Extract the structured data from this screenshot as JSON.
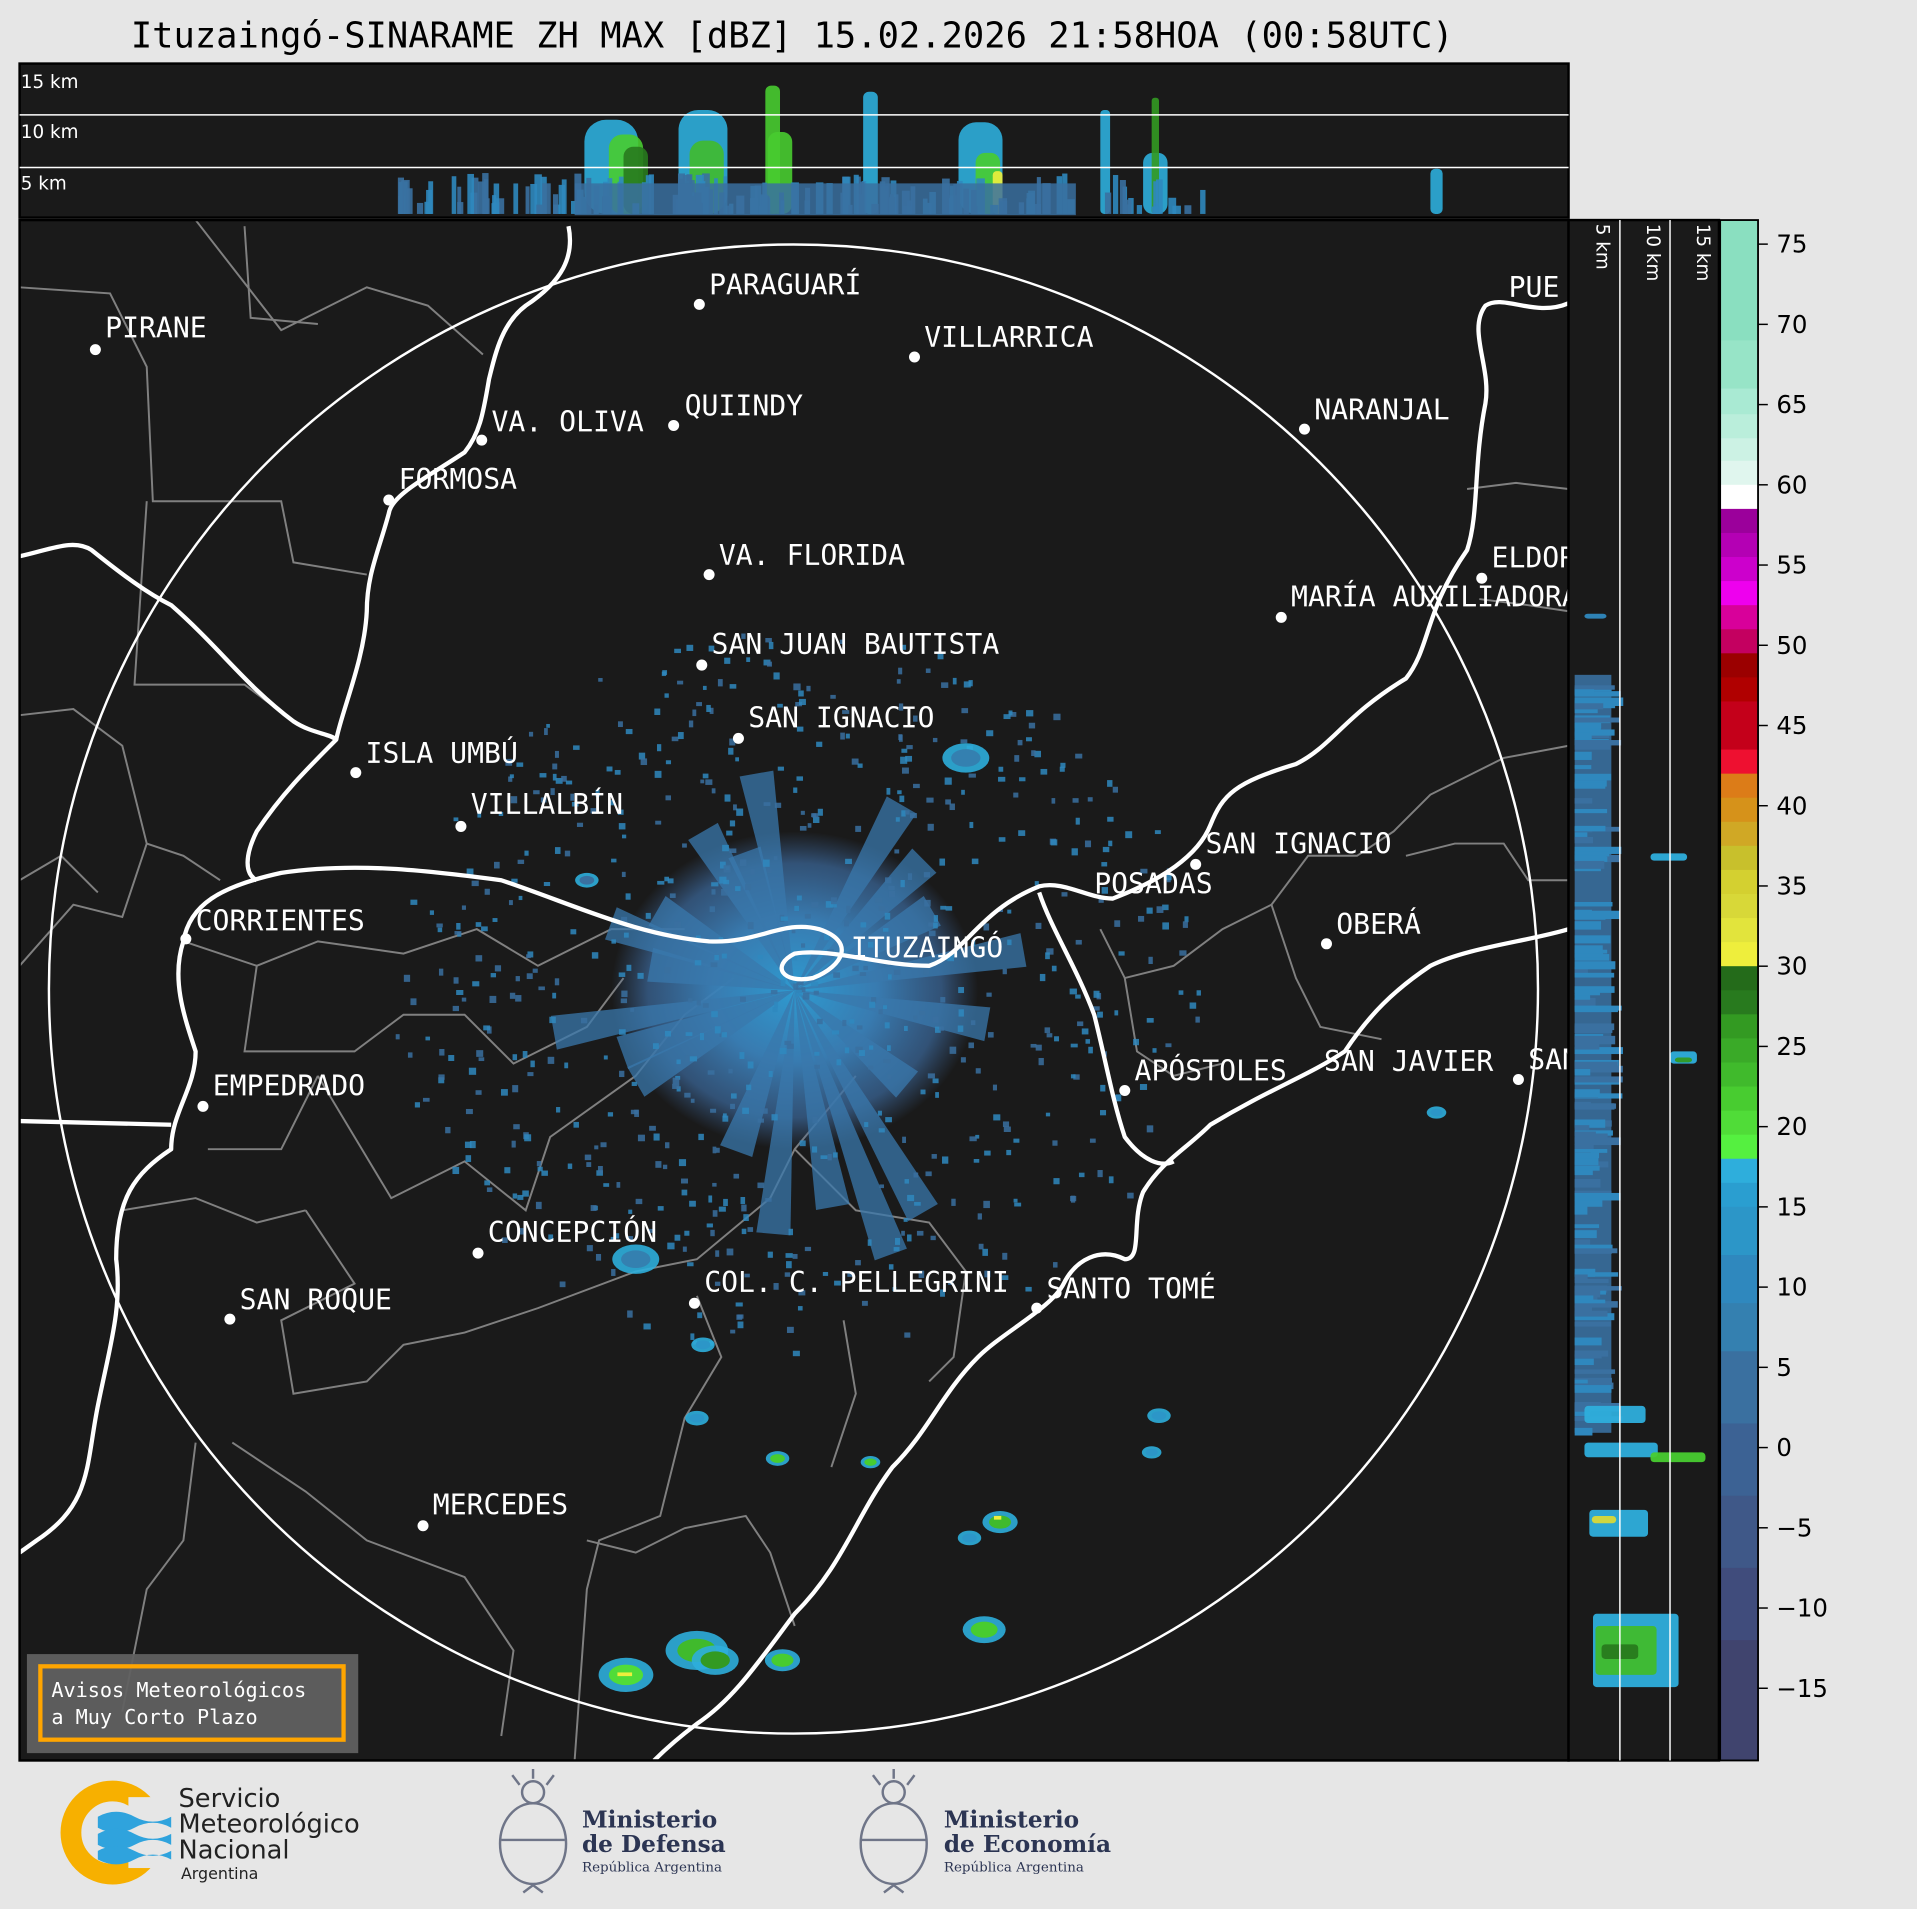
{
  "title": "Ituzaingó-SINARAME ZH MAX [dBZ] 15.02.2026 21:58HOA (00:58UTC)",
  "top_panel": {
    "labels": [
      "15 km",
      "10 km",
      "5 km"
    ]
  },
  "side_panel": {
    "labels": [
      "5 km",
      "10 km",
      "15 km"
    ]
  },
  "cities": [
    "PIRANE",
    "PARAGUARÍ",
    "VILLARRICA",
    "QUIINDY",
    "VA. OLIVA",
    "FORMOSA",
    "NARANJAL",
    "VA. FLORIDA",
    "SAN JUAN BAUTISTA",
    "MARÍA AUXILIADORA",
    "ELDORADO",
    "PUE",
    "SAN IGNACIO",
    "ISLA UMBÚ",
    "VILLALBÍN",
    "SAN IGNACIO",
    "POSADAS",
    "CORRIENTES",
    "ITUZAINGÓ",
    "OBERÁ",
    "EMPEDRADO",
    "APÓSTOLES",
    "SAN JAVIER",
    "SAN",
    "CONCEPCIÓN",
    "COL. C. PELLEGRINI",
    "SANTO TOMÉ",
    "SAN ROQUE",
    "MERCEDES"
  ],
  "legend_box": {
    "line1": "Avisos Meteorológicos",
    "line2": "a Muy Corto Plazo",
    "border_color": "#FFA500"
  },
  "colorbar": {
    "unit": "dBZ",
    "ticks": [
      "75",
      "70",
      "65",
      "60",
      "55",
      "50",
      "45",
      "40",
      "35",
      "30",
      "25",
      "20",
      "15",
      "10",
      "5",
      "0",
      "−5",
      "−10",
      "−15"
    ],
    "tick_values": [
      75,
      70,
      65,
      60,
      55,
      50,
      45,
      40,
      35,
      30,
      25,
      20,
      15,
      10,
      5,
      0,
      -5,
      -10,
      -15
    ],
    "range": [
      -19.5,
      76.5
    ],
    "levels": [
      {
        "from": 69.0,
        "to": 76.5,
        "color": "#8ADFC0"
      },
      {
        "from": 66.0,
        "to": 69.0,
        "color": "#97E4C7"
      },
      {
        "from": 64.4,
        "to": 66.0,
        "color": "#A9EAD3"
      },
      {
        "from": 62.9,
        "to": 64.4,
        "color": "#BAEEDB"
      },
      {
        "from": 61.5,
        "to": 62.9,
        "color": "#CCF2E4"
      },
      {
        "from": 60.0,
        "to": 61.5,
        "color": "#E0F6EE"
      },
      {
        "from": 58.5,
        "to": 60.0,
        "color": "#FFFFFF"
      },
      {
        "from": 57.0,
        "to": 58.5,
        "color": "#9B009B"
      },
      {
        "from": 55.5,
        "to": 57.0,
        "color": "#B400B4"
      },
      {
        "from": 54.0,
        "to": 55.5,
        "color": "#CC00CC"
      },
      {
        "from": 52.5,
        "to": 54.0,
        "color": "#EE00EE"
      },
      {
        "from": 51.0,
        "to": 52.5,
        "color": "#D8009A"
      },
      {
        "from": 49.5,
        "to": 51.0,
        "color": "#C40060"
      },
      {
        "from": 48.0,
        "to": 49.5,
        "color": "#9B0000"
      },
      {
        "from": 46.5,
        "to": 48.0,
        "color": "#B00000"
      },
      {
        "from": 43.5,
        "to": 46.5,
        "color": "#C4001A"
      },
      {
        "from": 42.0,
        "to": 43.5,
        "color": "#EE1030"
      },
      {
        "from": 40.5,
        "to": 42.0,
        "color": "#DC7C18"
      },
      {
        "from": 39.0,
        "to": 40.5,
        "color": "#D6921A"
      },
      {
        "from": 37.5,
        "to": 39.0,
        "color": "#D0A825"
      },
      {
        "from": 36.0,
        "to": 37.5,
        "color": "#C8C02C"
      },
      {
        "from": 34.5,
        "to": 36.0,
        "color": "#D4D030"
      },
      {
        "from": 33.0,
        "to": 34.5,
        "color": "#D8D838"
      },
      {
        "from": 31.5,
        "to": 33.0,
        "color": "#E2E43C"
      },
      {
        "from": 30.0,
        "to": 31.5,
        "color": "#EEEE3C"
      },
      {
        "from": 28.5,
        "to": 30.0,
        "color": "#246B1A"
      },
      {
        "from": 27.0,
        "to": 28.5,
        "color": "#287A1E"
      },
      {
        "from": 25.5,
        "to": 27.0,
        "color": "#339A22"
      },
      {
        "from": 24.0,
        "to": 25.5,
        "color": "#3AAA28"
      },
      {
        "from": 22.5,
        "to": 24.0,
        "color": "#40BA2C"
      },
      {
        "from": 21.0,
        "to": 22.5,
        "color": "#48CC30"
      },
      {
        "from": 19.5,
        "to": 21.0,
        "color": "#50DC38"
      },
      {
        "from": 18.0,
        "to": 19.5,
        "color": "#55F040"
      },
      {
        "from": 16.5,
        "to": 18.0,
        "color": "#2EAEDC"
      },
      {
        "from": 15.0,
        "to": 16.5,
        "color": "#2A9ED0"
      },
      {
        "from": 12.0,
        "to": 15.0,
        "color": "#2C96C8"
      },
      {
        "from": 9.0,
        "to": 12.0,
        "color": "#2F88BE"
      },
      {
        "from": 6.0,
        "to": 9.0,
        "color": "#3480B0"
      },
      {
        "from": 1.5,
        "to": 6.0,
        "color": "#3A70A0"
      },
      {
        "from": -3.0,
        "to": 1.5,
        "color": "#3C6294"
      },
      {
        "from": -7.5,
        "to": -3.0,
        "color": "#3F5888"
      },
      {
        "from": -12.0,
        "to": -7.5,
        "color": "#404C7C"
      },
      {
        "from": -19.5,
        "to": -12.0,
        "color": "#40446E"
      }
    ]
  },
  "logos": {
    "smn": {
      "line1": "Servicio",
      "line2": "Meteorológico",
      "line3": "Nacional",
      "line4": "Argentina"
    },
    "defensa": {
      "line1": "Ministerio",
      "line2": "de Defensa",
      "line3": "República Argentina"
    },
    "economia": {
      "line1": "Ministerio",
      "line2": "de Economía",
      "line3": "República Argentina"
    }
  },
  "colors": {
    "map_background": "#1A1A1A",
    "rivers": "#FFFFFF",
    "borders": "#808080",
    "range_ring": "#FFFFFF"
  }
}
